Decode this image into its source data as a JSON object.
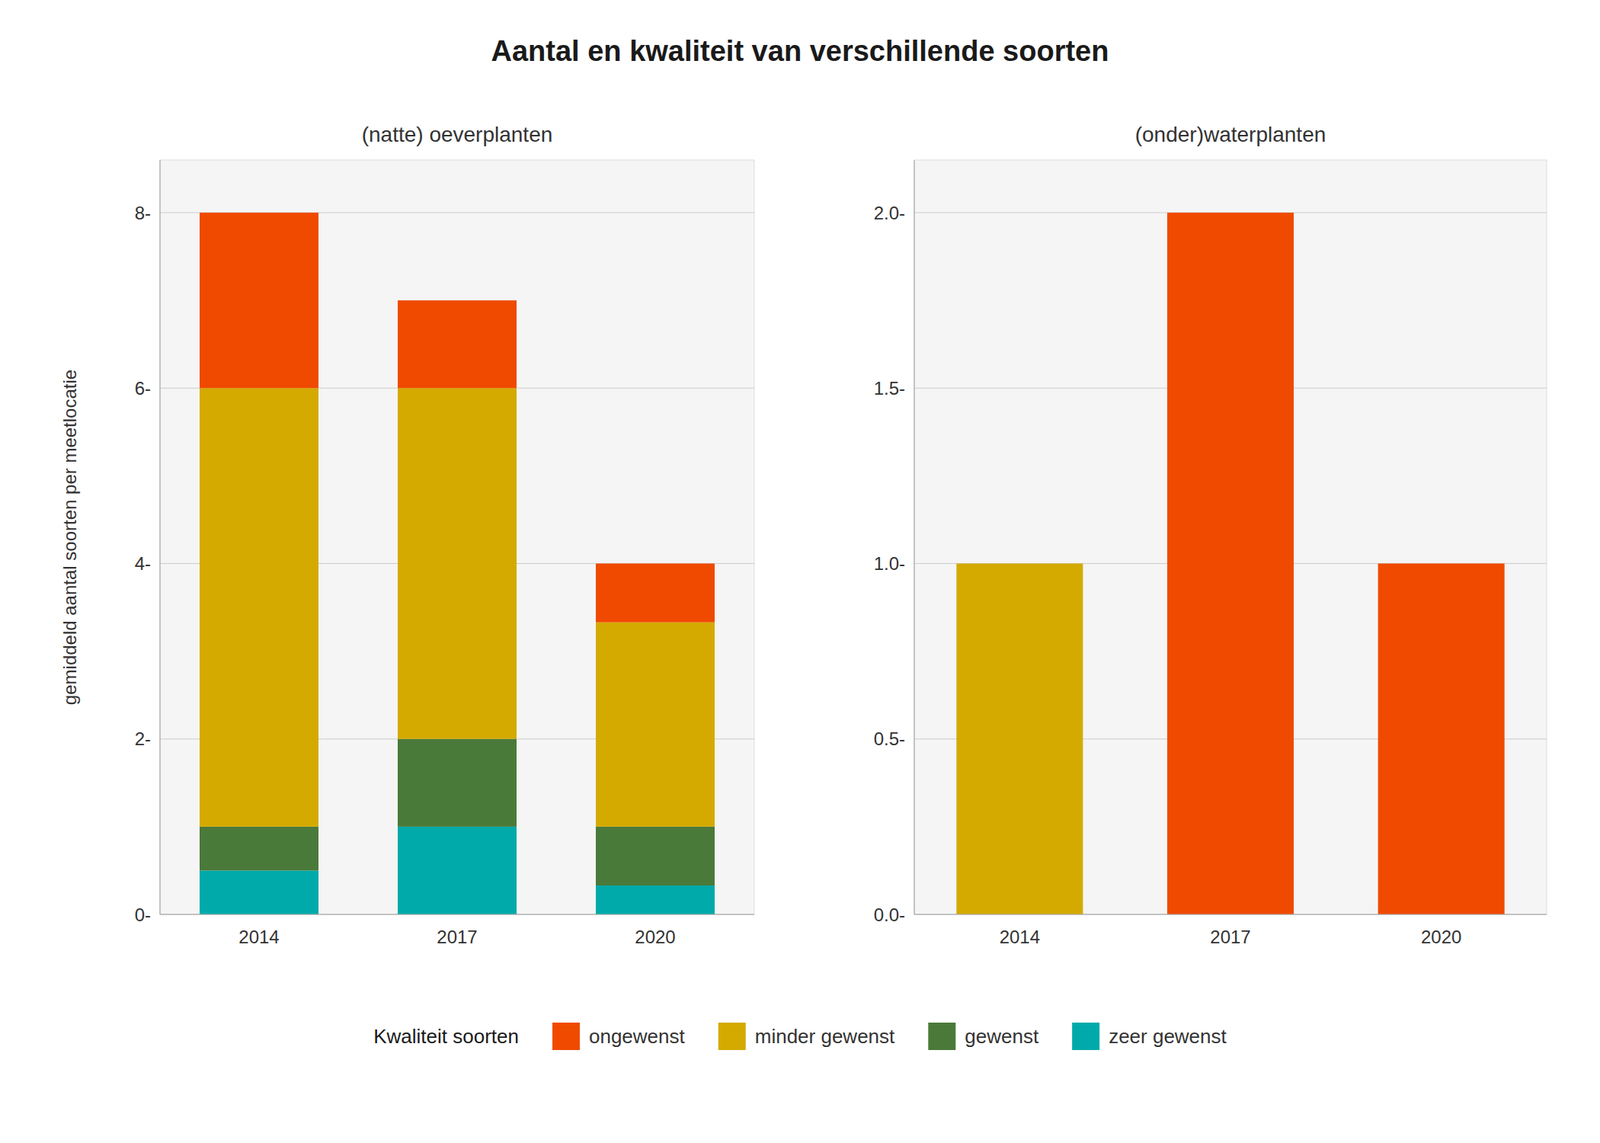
{
  "title": "Aantal en kwaliteit van verschillende soorten",
  "legend_title": "Kwaliteit soorten",
  "chart_data": [
    {
      "type": "bar",
      "stacked": true,
      "grid": true,
      "title": "(natte) oeverplanten",
      "ylabel": "gemiddeld aantal soorten per meetlocatie",
      "categories": [
        "2014",
        "2017",
        "2020"
      ],
      "series": [
        {
          "name": "zeer gewenst",
          "color": "#00AAAA",
          "values": [
            0.5,
            1.0,
            0.33
          ]
        },
        {
          "name": "gewenst",
          "color": "#4A7A3A",
          "values": [
            0.5,
            1.0,
            0.67
          ]
        },
        {
          "name": "minder gewenst",
          "color": "#D4AA00",
          "values": [
            5.0,
            4.0,
            2.33
          ]
        },
        {
          "name": "ongewenst",
          "color": "#F04A00",
          "values": [
            2.0,
            1.0,
            0.67
          ]
        }
      ],
      "ylim": [
        0,
        8.6
      ],
      "yticks": [
        {
          "value": 0,
          "label": "0-"
        },
        {
          "value": 2,
          "label": "2-"
        },
        {
          "value": 4,
          "label": "4-"
        },
        {
          "value": 6,
          "label": "6-"
        },
        {
          "value": 8,
          "label": "8-"
        }
      ]
    },
    {
      "type": "bar",
      "stacked": true,
      "grid": true,
      "title": "(onder)waterplanten",
      "categories": [
        "2014",
        "2017",
        "2020"
      ],
      "series": [
        {
          "name": "zeer gewenst",
          "color": "#00AAAA",
          "values": [
            0.0,
            0.0,
            0.0
          ]
        },
        {
          "name": "gewenst",
          "color": "#4A7A3A",
          "values": [
            0.0,
            0.0,
            0.0
          ]
        },
        {
          "name": "minder gewenst",
          "color": "#D4AA00",
          "values": [
            1.0,
            0.0,
            0.0
          ]
        },
        {
          "name": "ongewenst",
          "color": "#F04A00",
          "values": [
            0.0,
            2.0,
            1.0
          ]
        }
      ],
      "ylim": [
        0,
        2.15
      ],
      "yticks": [
        {
          "value": 0.0,
          "label": "0.0-"
        },
        {
          "value": 0.5,
          "label": "0.5-"
        },
        {
          "value": 1.0,
          "label": "1.0-"
        },
        {
          "value": 1.5,
          "label": "1.5-"
        },
        {
          "value": 2.0,
          "label": "2.0-"
        }
      ]
    }
  ]
}
